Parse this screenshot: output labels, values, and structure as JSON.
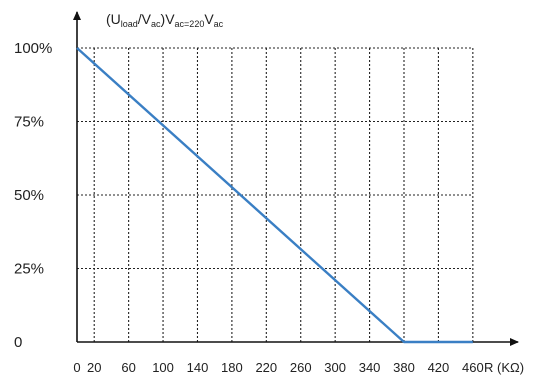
{
  "chart_data": {
    "type": "line",
    "y_title": {
      "prefix": "(U",
      "sub1": "load",
      "mid1": "/V",
      "sub2": "ac",
      "mid2": ")V",
      "sub3": "ac=220",
      "mid3": "V",
      "sub4": "ac"
    },
    "xlabel": "R (KΩ)",
    "x_ticks": [
      "0",
      "20",
      "60",
      "100",
      "140",
      "180",
      "220",
      "260",
      "300",
      "340",
      "380",
      "420",
      "460"
    ],
    "y_ticks": [
      "0",
      "25%",
      "50%",
      "75%",
      "100%"
    ],
    "x_tick_values": [
      0,
      20,
      60,
      100,
      140,
      180,
      220,
      260,
      300,
      340,
      380,
      420,
      460
    ],
    "y_tick_values": [
      0,
      25,
      50,
      75,
      100
    ],
    "grid": true,
    "series": [
      {
        "color": "#3a7fc4",
        "x": [
          0,
          380,
          460
        ],
        "y": [
          100,
          0,
          0
        ]
      }
    ]
  }
}
